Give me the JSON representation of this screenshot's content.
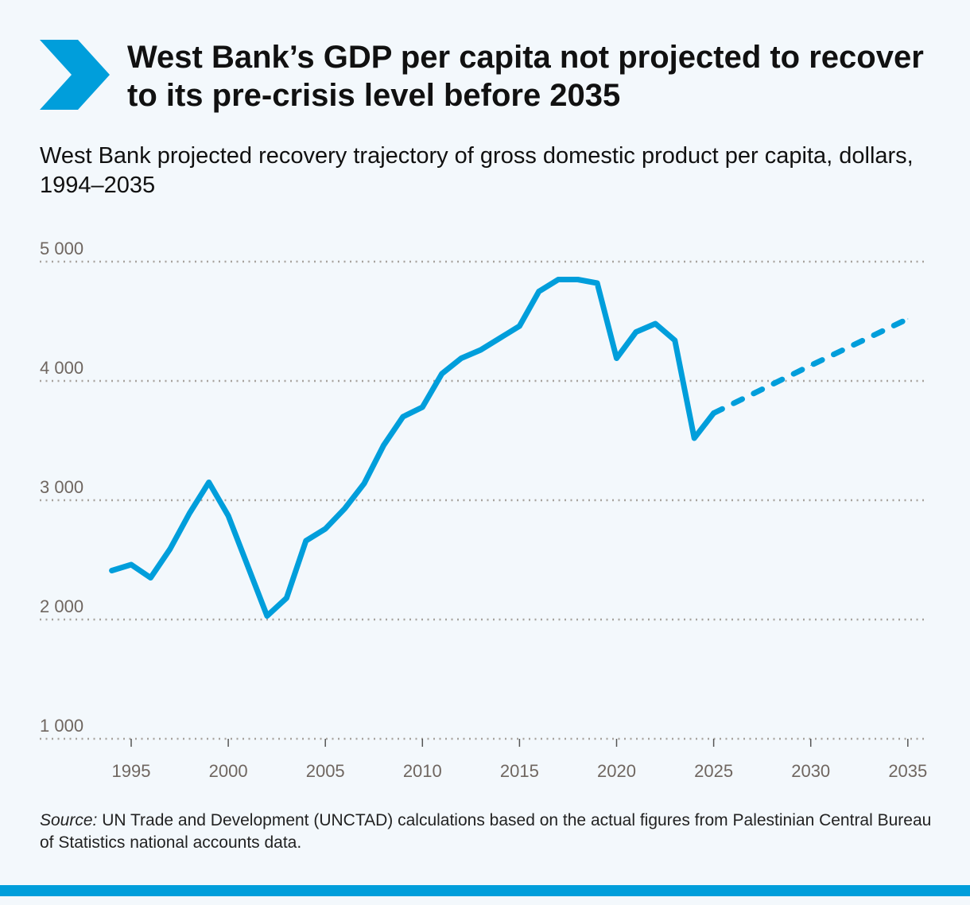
{
  "header": {
    "title": "West Bank’s GDP per capita not projected to recover to its pre-crisis level before 2035",
    "subtitle": "West Bank projected recovery trajectory of gross domestic product per capita, dollars, 1994–2035",
    "icon": "chevron-right-icon"
  },
  "footer": {
    "source_label": "Source:",
    "source_text": " UN Trade and Development (UNCTAD) calculations based on the actual figures from Palestinian Central Bureau of Statistics national accounts data."
  },
  "colors": {
    "line": "#009edb",
    "grid": "#a8a39e",
    "tick_text": "#6f6660",
    "background": "#f3f8fc"
  },
  "chart_data": {
    "type": "line",
    "title": "West Bank projected recovery trajectory of gross domestic product per capita, dollars, 1994–2035",
    "xlabel": "",
    "ylabel": "",
    "xlim": [
      1994,
      2035
    ],
    "ylim": [
      1000,
      5000
    ],
    "grid": "horizontal dotted",
    "x_ticks": [
      1995,
      2000,
      2005,
      2010,
      2015,
      2020,
      2025,
      2030,
      2035
    ],
    "y_ticks": [
      1000,
      2000,
      3000,
      4000,
      5000
    ],
    "y_tick_labels": [
      "1 000",
      "2 000",
      "3 000",
      "4 000",
      "5 000"
    ],
    "series": [
      {
        "style": "solid",
        "x": [
          1994,
          1995,
          1996,
          1997,
          1998,
          1999,
          2000,
          2001,
          2002,
          2003,
          2004,
          2005,
          2006,
          2007,
          2008,
          2009,
          2010,
          2011,
          2012,
          2013,
          2014,
          2015,
          2016,
          2017,
          2018,
          2019,
          2020,
          2021,
          2022,
          2023,
          2024,
          2025
        ],
        "y": [
          2410,
          2460,
          2350,
          2590,
          2890,
          3150,
          2870,
          2450,
          2030,
          2180,
          2660,
          2760,
          2930,
          3140,
          3460,
          3700,
          3780,
          4060,
          4190,
          4260,
          4360,
          4460,
          4750,
          4850,
          4850,
          4820,
          4190,
          4410,
          4480,
          4340,
          3520,
          3730
        ]
      },
      {
        "style": "dashed",
        "x": [
          2025,
          2030,
          2035
        ],
        "y": [
          3730,
          4130,
          4520
        ]
      }
    ]
  }
}
